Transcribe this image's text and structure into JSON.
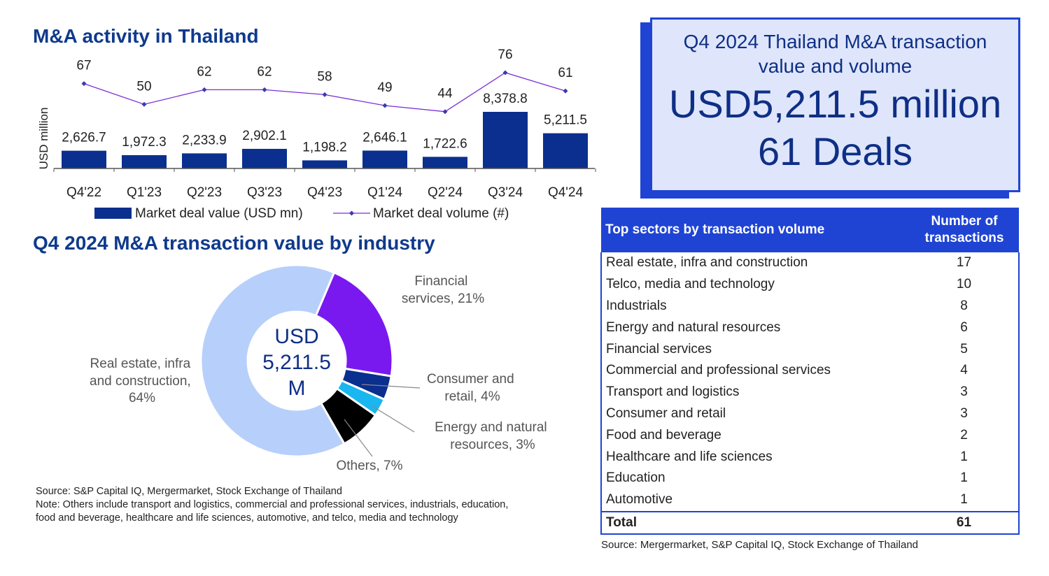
{
  "activity": {
    "title": "M&A activity in Thailand",
    "ylabel": "USD million",
    "legend_bar": "Market deal value (USD mn)",
    "legend_line": "Market deal volume (#)"
  },
  "industry": {
    "title": "Q4 2024 M&A transaction value by industry",
    "center_line1": "USD",
    "center_line2": "5,211.5",
    "center_line3": "M"
  },
  "kpi": {
    "heading": "Q4 2024 Thailand M&A transaction value and volume",
    "value": "USD5,211.5 million",
    "deals": "61 Deals"
  },
  "table": {
    "col1": "Top sectors by transaction volume",
    "col2_line1": "Number of",
    "col2_line2": "transactions",
    "rows": [
      {
        "sector": "Real estate, infra and construction",
        "count": "17"
      },
      {
        "sector": "Telco, media and technology",
        "count": "10"
      },
      {
        "sector": "Industrials",
        "count": "8"
      },
      {
        "sector": "Energy and natural resources",
        "count": "6"
      },
      {
        "sector": "Financial services",
        "count": "5"
      },
      {
        "sector": "Commercial and professional services",
        "count": "4"
      },
      {
        "sector": "Transport and logistics",
        "count": "3"
      },
      {
        "sector": "Consumer and retail",
        "count": "3"
      },
      {
        "sector": "Food and beverage",
        "count": "2"
      },
      {
        "sector": "Healthcare and life sciences",
        "count": "1"
      },
      {
        "sector": "Education",
        "count": "1"
      },
      {
        "sector": "Automotive",
        "count": "1"
      }
    ],
    "total_label": "Total",
    "total_value": "61",
    "source": "Source: Mergermarket, S&P Capital IQ, Stock Exchange of Thailand"
  },
  "notes": {
    "source": "Source: S&P Capital IQ, Mergermarket, Stock Exchange of Thailand",
    "note1": "Note: Others include transport and logistics, commercial and professional services, industrials, education,",
    "note2": "food and beverage, healthcare and life sciences, automotive, and telco, media and technology"
  },
  "colors": {
    "navy": "#0a2f8f",
    "title_blue": "#0f3a8c",
    "line_purple": "#7b2fd6",
    "accent_blue": "#1f44d4",
    "kpi_bg": "#dfe6fb"
  },
  "chart_data": [
    {
      "type": "bar",
      "subtype": "bar+line combo",
      "categories": [
        "Q4'22",
        "Q1'23",
        "Q2'23",
        "Q3'23",
        "Q4'23",
        "Q1'24",
        "Q2'24",
        "Q3'24",
        "Q4'24"
      ],
      "series": [
        {
          "name": "Market deal value (USD mn)",
          "type": "bar",
          "values": [
            2626.7,
            1972.3,
            2233.9,
            2902.1,
            1198.2,
            2646.1,
            1722.6,
            8378.8,
            5211.5
          ],
          "labels": [
            "2,626.7",
            "1,972.3",
            "2,233.9",
            "2,902.1",
            "1,198.2",
            "2,646.1",
            "1,722.6",
            "8,378.8",
            "5,211.5"
          ]
        },
        {
          "name": "Market deal volume (#)",
          "type": "line",
          "values": [
            67,
            50,
            62,
            62,
            58,
            49,
            44,
            76,
            61
          ]
        }
      ],
      "ylabel": "USD million",
      "legend": "bottom"
    },
    {
      "type": "pie",
      "subtype": "donut",
      "slices": [
        {
          "label": "Real estate, infra and construction, 64%",
          "value": 64,
          "color": "#b7cffb"
        },
        {
          "label": "Financial services, 21%",
          "value": 21,
          "color": "#7a18f0"
        },
        {
          "label": "Consumer and retail, 4%",
          "value": 4,
          "color": "#0a2f8f"
        },
        {
          "label": "Energy and natural resources, 3%",
          "value": 3,
          "color": "#1ab6f0"
        },
        {
          "label": "Others, 7%",
          "value": 7,
          "color": "#000000"
        }
      ],
      "center": "USD 5,211.5 M"
    }
  ]
}
